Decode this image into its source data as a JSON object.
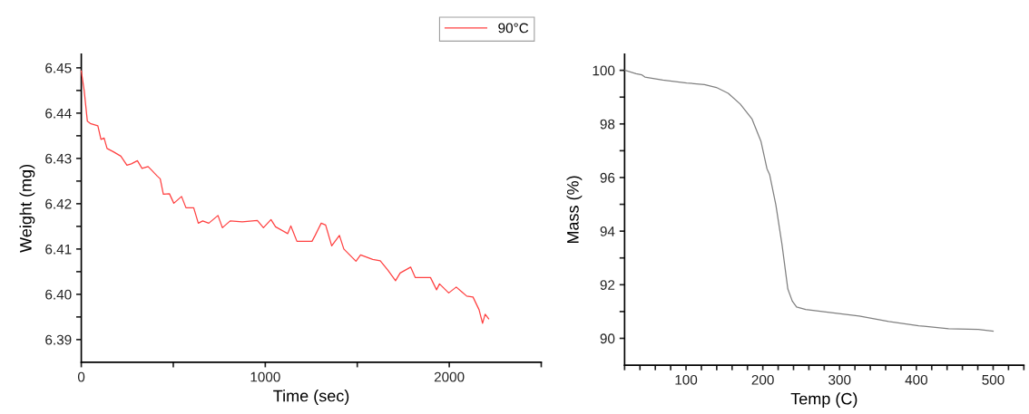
{
  "chart_data": [
    {
      "type": "line",
      "xlabel": "Time (sec)",
      "ylabel": "Weight (mg)",
      "legend": "top right",
      "grid": false,
      "xlim": [
        0,
        2500
      ],
      "xticks": [
        0,
        {
          "value": 500,
          "label": null
        },
        1000,
        {
          "value": 1500,
          "label": null
        },
        2000,
        {
          "value": 2500,
          "label": null
        }
      ],
      "ylim": [
        6.385,
        6.453
      ],
      "yticks": [
        {
          "value": 6.39,
          "label": "6.39"
        },
        {
          "value": 6.395,
          "label": null
        },
        {
          "value": 6.4,
          "label": "6.40"
        },
        {
          "value": 6.405,
          "label": null
        },
        {
          "value": 6.41,
          "label": "6.41"
        },
        {
          "value": 6.415,
          "label": null
        },
        {
          "value": 6.42,
          "label": "6.42"
        },
        {
          "value": 6.425,
          "label": null
        },
        {
          "value": 6.43,
          "label": "6.43"
        },
        {
          "value": 6.435,
          "label": null
        },
        {
          "value": 6.44,
          "label": "6.44"
        },
        {
          "value": 6.445,
          "label": null
        },
        {
          "value": 6.45,
          "label": "6.45"
        }
      ],
      "series": [
        {
          "name": "90°C",
          "color": "#ff4040",
          "x": [
            0,
            16,
            33,
            49,
            90,
            107,
            124,
            140,
            173,
            215,
            248,
            272,
            305,
            330,
            363,
            380,
            413,
            429,
            446,
            479,
            503,
            545,
            569,
            611,
            636,
            660,
            693,
            743,
            767,
            809,
            875,
            957,
            990,
            1031,
            1056,
            1122,
            1139,
            1172,
            1254,
            1271,
            1304,
            1328,
            1361,
            1403,
            1427,
            1493,
            1518,
            1584,
            1625,
            1667,
            1708,
            1733,
            1790,
            1815,
            1898,
            1931,
            1947,
            1997,
            2038,
            2095,
            2129,
            2162,
            2181,
            2195,
            2214
          ],
          "values": [
            6.4493,
            6.4449,
            6.4382,
            6.4377,
            6.4372,
            6.4342,
            6.4345,
            6.4322,
            6.4315,
            6.4305,
            6.4285,
            6.4288,
            6.4295,
            6.4278,
            6.4282,
            6.4275,
            6.4261,
            6.4255,
            6.4221,
            6.4222,
            6.4201,
            6.4216,
            6.4191,
            6.4191,
            6.4157,
            6.4162,
            6.4157,
            6.4174,
            6.4147,
            6.4162,
            6.416,
            6.4163,
            6.4147,
            6.4165,
            6.4149,
            6.4134,
            6.4151,
            6.4117,
            6.4117,
            6.413,
            6.4157,
            6.4153,
            6.4107,
            6.413,
            6.41,
            6.4073,
            6.4087,
            6.4077,
            6.4074,
            6.4053,
            6.403,
            6.4047,
            6.406,
            6.4037,
            6.4037,
            6.401,
            6.4023,
            6.4003,
            6.4016,
            6.3996,
            6.3994,
            6.3966,
            6.3936,
            6.3956,
            6.3946
          ]
        }
      ]
    },
    {
      "type": "line",
      "xlabel": "Temp (C)",
      "ylabel": "Mass (%)",
      "grid": false,
      "xlim": [
        20,
        540
      ],
      "xticks": [
        {
          "value": 20,
          "label": null
        },
        {
          "value": 40,
          "label": null
        },
        {
          "value": 60,
          "label": null
        },
        {
          "value": 80,
          "label": null
        },
        100,
        {
          "value": 120,
          "label": null
        },
        {
          "value": 140,
          "label": null
        },
        {
          "value": 160,
          "label": null
        },
        {
          "value": 180,
          "label": null
        },
        200,
        {
          "value": 220,
          "label": null
        },
        {
          "value": 240,
          "label": null
        },
        {
          "value": 260,
          "label": null
        },
        {
          "value": 280,
          "label": null
        },
        300,
        {
          "value": 320,
          "label": null
        },
        {
          "value": 340,
          "label": null
        },
        {
          "value": 360,
          "label": null
        },
        {
          "value": 380,
          "label": null
        },
        400,
        {
          "value": 420,
          "label": null
        },
        {
          "value": 440,
          "label": null
        },
        {
          "value": 460,
          "label": null
        },
        {
          "value": 480,
          "label": null
        },
        500,
        {
          "value": 520,
          "label": null
        },
        {
          "value": 540,
          "label": null
        }
      ],
      "ylim": [
        89,
        100.6
      ],
      "yticks": [
        90,
        {
          "value": 91,
          "label": null
        },
        92,
        {
          "value": 93,
          "label": null
        },
        94,
        {
          "value": 95,
          "label": null
        },
        96,
        {
          "value": 97,
          "label": null
        },
        98,
        {
          "value": 99,
          "label": null
        },
        100
      ],
      "series": [
        {
          "color": "#808080",
          "x": [
            20.6,
            35,
            42.6,
            46.4,
            69.8,
            100.8,
            124,
            139.5,
            155,
            170.6,
            186,
            197.7,
            205.4,
            209,
            217,
            225,
            232.6,
            238.4,
            244,
            255.8,
            286.9,
            325.6,
            364,
            403,
            442,
            480.6,
            500
          ],
          "values": [
            100.0,
            99.87,
            99.83,
            99.75,
            99.64,
            99.53,
            99.47,
            99.36,
            99.14,
            98.74,
            98.18,
            97.34,
            96.33,
            96.1,
            94.98,
            93.5,
            91.84,
            91.39,
            91.17,
            91.08,
            90.97,
            90.83,
            90.63,
            90.47,
            90.36,
            90.33,
            90.27
          ]
        }
      ]
    }
  ]
}
